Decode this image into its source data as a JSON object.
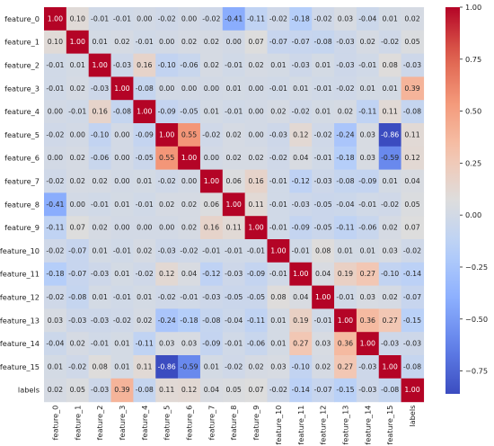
{
  "chart_data": {
    "type": "heatmap",
    "title": "",
    "xlabel": "",
    "ylabel": "",
    "labels": [
      "feature_0",
      "feature_1",
      "feature_2",
      "feature_3",
      "feature_4",
      "feature_5",
      "feature_6",
      "feature_7",
      "feature_8",
      "feature_9",
      "feature_10",
      "feature_11",
      "feature_12",
      "feature_13",
      "feature_14",
      "feature_15",
      "labels"
    ],
    "matrix": [
      [
        1.0,
        0.1,
        -0.01,
        -0.01,
        0.0,
        -0.02,
        0.0,
        -0.02,
        -0.41,
        -0.11,
        -0.02,
        -0.18,
        -0.02,
        0.03,
        -0.04,
        0.01,
        0.02
      ],
      [
        0.1,
        1.0,
        0.01,
        0.02,
        -0.01,
        0.0,
        0.02,
        0.02,
        -0.0,
        0.07,
        -0.07,
        -0.07,
        -0.08,
        -0.03,
        0.02,
        -0.02,
        0.05
      ],
      [
        -0.01,
        0.01,
        1.0,
        -0.03,
        0.16,
        -0.1,
        -0.06,
        0.02,
        -0.01,
        0.02,
        0.01,
        -0.03,
        0.01,
        -0.03,
        -0.01,
        0.08,
        -0.03
      ],
      [
        -0.01,
        0.02,
        -0.03,
        1.0,
        -0.08,
        0.0,
        0.0,
        0.0,
        0.01,
        0.0,
        -0.01,
        0.01,
        -0.01,
        -0.02,
        0.01,
        0.01,
        0.39
      ],
      [
        0.0,
        -0.01,
        0.16,
        -0.08,
        1.0,
        -0.09,
        -0.05,
        0.01,
        -0.01,
        0.0,
        0.02,
        -0.02,
        0.01,
        0.02,
        -0.11,
        0.11,
        -0.08
      ],
      [
        -0.02,
        0.0,
        -0.1,
        0.0,
        -0.09,
        1.0,
        0.55,
        -0.02,
        0.02,
        0.0,
        -0.03,
        0.12,
        -0.02,
        -0.24,
        0.03,
        -0.86,
        0.11
      ],
      [
        0.0,
        0.02,
        -0.06,
        0.0,
        -0.05,
        0.55,
        1.0,
        0.0,
        0.02,
        0.02,
        -0.02,
        0.04,
        -0.01,
        -0.18,
        0.03,
        -0.59,
        0.12
      ],
      [
        -0.02,
        0.02,
        0.02,
        0.0,
        0.01,
        -0.02,
        0.0,
        1.0,
        0.06,
        0.16,
        -0.01,
        -0.12,
        -0.03,
        -0.08,
        -0.09,
        0.01,
        0.04
      ],
      [
        -0.41,
        -0.0,
        -0.01,
        0.01,
        -0.01,
        0.02,
        0.02,
        0.06,
        1.0,
        0.11,
        -0.01,
        -0.03,
        -0.05,
        -0.04,
        -0.01,
        -0.02,
        0.05
      ],
      [
        -0.11,
        0.07,
        0.02,
        0.0,
        0.0,
        0.0,
        0.02,
        0.16,
        0.11,
        1.0,
        -0.01,
        -0.09,
        -0.05,
        -0.11,
        -0.06,
        0.02,
        0.07
      ],
      [
        -0.02,
        -0.07,
        0.01,
        -0.01,
        0.02,
        -0.03,
        -0.02,
        -0.01,
        -0.01,
        -0.01,
        1.0,
        -0.01,
        0.08,
        0.01,
        0.01,
        0.03,
        -0.02
      ],
      [
        -0.18,
        -0.07,
        -0.03,
        0.01,
        -0.02,
        0.12,
        0.04,
        -0.12,
        -0.03,
        -0.09,
        -0.01,
        1.0,
        0.04,
        0.19,
        0.27,
        -0.1,
        -0.14
      ],
      [
        -0.02,
        -0.08,
        0.01,
        -0.01,
        0.01,
        -0.02,
        -0.01,
        -0.03,
        -0.05,
        -0.05,
        0.08,
        0.04,
        1.0,
        -0.01,
        0.03,
        0.02,
        -0.07
      ],
      [
        0.03,
        -0.03,
        -0.03,
        -0.02,
        0.02,
        -0.24,
        -0.18,
        -0.08,
        -0.04,
        -0.11,
        0.01,
        0.19,
        -0.01,
        1.0,
        0.36,
        0.27,
        -0.15
      ],
      [
        -0.04,
        0.02,
        -0.01,
        0.01,
        -0.11,
        0.03,
        0.03,
        -0.09,
        -0.01,
        -0.06,
        0.01,
        0.27,
        0.03,
        0.36,
        1.0,
        -0.03,
        -0.03
      ],
      [
        0.01,
        -0.02,
        0.08,
        0.01,
        0.11,
        -0.86,
        -0.59,
        0.01,
        -0.02,
        0.02,
        0.03,
        -0.1,
        0.02,
        0.27,
        -0.03,
        1.0,
        -0.08
      ],
      [
        0.02,
        0.05,
        -0.03,
        0.39,
        -0.08,
        0.11,
        0.12,
        0.04,
        0.05,
        0.07,
        -0.02,
        -0.14,
        -0.07,
        -0.15,
        -0.03,
        -0.08,
        1.0
      ]
    ],
    "colormap": "coolwarm",
    "vmin": -0.86,
    "vmax": 1.0,
    "colorbar_ticks": [
      "1.00",
      "0.75",
      "0.50",
      "0.25",
      "0.00",
      "−0.25",
      "−0.50",
      "−0.75"
    ],
    "colorbar_tick_values": [
      1.0,
      0.75,
      0.5,
      0.25,
      0.0,
      -0.25,
      -0.5,
      -0.75
    ],
    "grid": false,
    "annotations": true
  }
}
